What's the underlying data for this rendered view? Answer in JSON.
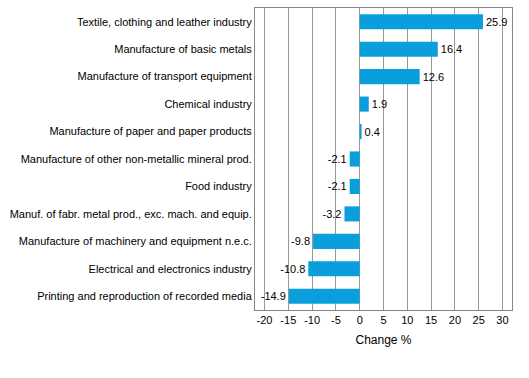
{
  "chart_data": {
    "type": "bar",
    "orientation": "horizontal",
    "categories": [
      "Textile, clothing and leather industry",
      "Manufacture of basic metals",
      "Manufacture of transport equipment",
      "Chemical industry",
      "Manufacture of paper and paper products",
      "Manufacture of other non-metallic mineral prod.",
      "Food industry",
      "Manuf. of fabr. metal prod., exc. mach. and equip.",
      "Manufacture of machinery and equipment n.e.c.",
      "Electrical and electronics industry",
      "Printing and reproduction of recorded media"
    ],
    "values": [
      25.9,
      16.4,
      12.6,
      1.9,
      0.4,
      -2.1,
      -2.1,
      -3.2,
      -9.8,
      -10.8,
      -14.9
    ],
    "color": "#0a9fdc",
    "x_label": "Change %",
    "xlim": [
      -22,
      32
    ],
    "xticks": [
      -20,
      -15,
      -10,
      -5,
      0,
      5,
      10,
      15,
      20,
      25,
      30
    ],
    "grid": true,
    "data_labels": true
  }
}
